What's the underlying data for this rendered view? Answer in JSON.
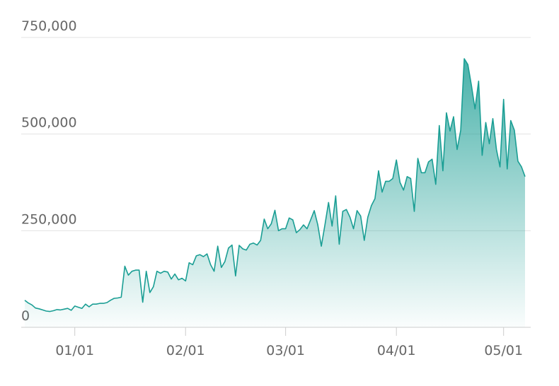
{
  "chart_data": {
    "type": "area",
    "categories": [
      "12/18",
      "12/19",
      "12/20",
      "12/21",
      "12/22",
      "12/23",
      "12/24",
      "12/25",
      "12/26",
      "12/27",
      "12/28",
      "12/29",
      "12/30",
      "12/31",
      "01/01",
      "01/02",
      "01/03",
      "01/04",
      "01/05",
      "01/06",
      "01/07",
      "01/08",
      "01/09",
      "01/10",
      "01/11",
      "01/12",
      "01/13",
      "01/14",
      "01/15",
      "01/16",
      "01/17",
      "01/18",
      "01/19",
      "01/20",
      "01/21",
      "01/22",
      "01/23",
      "01/24",
      "01/25",
      "01/26",
      "01/27",
      "01/28",
      "01/29",
      "01/30",
      "01/31",
      "02/01",
      "02/02",
      "02/03",
      "02/04",
      "02/05",
      "02/06",
      "02/07",
      "02/08",
      "02/09",
      "02/10",
      "02/11",
      "02/12",
      "02/13",
      "02/14",
      "02/15",
      "02/16",
      "02/17",
      "02/18",
      "02/19",
      "02/20",
      "02/21",
      "02/22",
      "02/23",
      "02/24",
      "02/25",
      "02/26",
      "02/27",
      "02/28",
      "03/01",
      "03/02",
      "03/03",
      "03/04",
      "03/05",
      "03/06",
      "03/07",
      "03/08",
      "03/09",
      "03/10",
      "03/11",
      "03/12",
      "03/13",
      "03/14",
      "03/15",
      "03/16",
      "03/17",
      "03/18",
      "03/19",
      "03/20",
      "03/21",
      "03/22",
      "03/23",
      "03/24",
      "03/25",
      "03/26",
      "03/27",
      "03/28",
      "03/29",
      "03/30",
      "03/31",
      "04/01",
      "04/02",
      "04/03",
      "04/04",
      "04/05",
      "04/06",
      "04/07",
      "04/08",
      "04/09",
      "04/10",
      "04/11",
      "04/12",
      "04/13",
      "04/14",
      "04/15",
      "04/16",
      "04/17",
      "04/18",
      "04/19",
      "04/20",
      "04/21",
      "04/22",
      "04/23",
      "04/24",
      "04/25",
      "04/26",
      "04/27",
      "04/28",
      "04/29",
      "04/30",
      "05/01",
      "05/02",
      "05/03",
      "05/04",
      "05/05",
      "05/06",
      "05/07"
    ],
    "values": [
      70000,
      63000,
      58000,
      50000,
      48000,
      45000,
      42000,
      41000,
      43000,
      46000,
      45000,
      47000,
      49000,
      44000,
      55000,
      52000,
      49000,
      60000,
      53000,
      60000,
      60000,
      62000,
      62000,
      64000,
      70000,
      75000,
      76000,
      78000,
      158000,
      135000,
      145000,
      148000,
      148000,
      65000,
      145000,
      90000,
      105000,
      145000,
      140000,
      145000,
      143000,
      125000,
      138000,
      123000,
      127000,
      120000,
      167000,
      162000,
      185000,
      188000,
      183000,
      190000,
      162000,
      145000,
      210000,
      155000,
      170000,
      205000,
      213000,
      133000,
      212000,
      203000,
      200000,
      215000,
      218000,
      213000,
      225000,
      280000,
      255000,
      268000,
      303000,
      250000,
      255000,
      255000,
      283000,
      278000,
      245000,
      253000,
      265000,
      255000,
      278000,
      302000,
      265000,
      210000,
      265000,
      323000,
      262000,
      340000,
      215000,
      300000,
      305000,
      285000,
      255000,
      302000,
      288000,
      225000,
      285000,
      315000,
      333000,
      405000,
      350000,
      378000,
      378000,
      385000,
      433000,
      375000,
      355000,
      390000,
      385000,
      300000,
      437000,
      400000,
      400000,
      428000,
      435000,
      370000,
      522000,
      405000,
      555000,
      508000,
      545000,
      460000,
      510000,
      695000,
      680000,
      625000,
      565000,
      637000,
      445000,
      530000,
      475000,
      540000,
      460000,
      415000,
      590000,
      410000,
      535000,
      510000,
      430000,
      415000,
      390000
    ],
    "color": "#1a9e94",
    "ylim": [
      0,
      750000
    ],
    "yticks": [
      0,
      {
        "value": 250000,
        "label": "250,000"
      },
      {
        "value": 500000,
        "label": "500,000"
      },
      {
        "value": 750000,
        "label": "750,000"
      }
    ],
    "xticks": [
      "01/01",
      "02/01",
      "03/01",
      "04/01",
      "05/01"
    ],
    "grid": true
  }
}
